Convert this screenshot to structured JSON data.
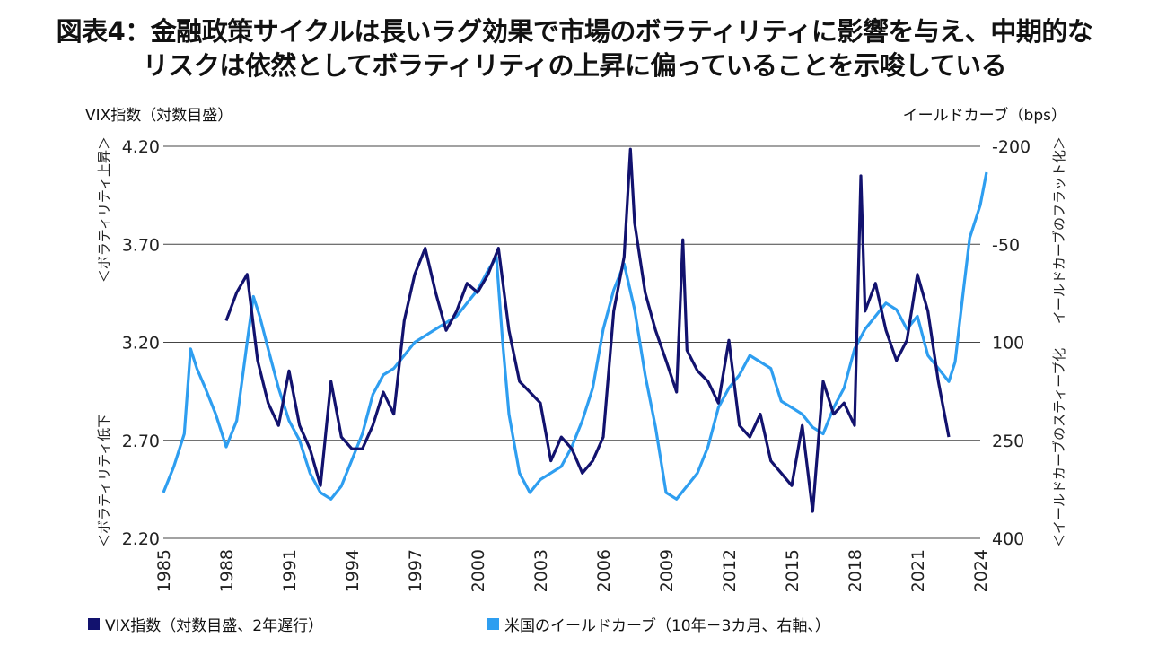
{
  "title_line1": "図表4：金融政策サイクルは長いラグ効果で市場のボラティリティに影響を与え、中期的な",
  "title_line2": "リスクは依然としてボラティリティの上昇に偏っていることを示唆している",
  "chart_data": {
    "type": "line",
    "left_axis_title": "VIX指数（対数目盛）",
    "right_axis_title": "イールドカーブ（bps）",
    "left_side_label_top": "＜ボラティリティ上昇＞",
    "left_side_label_bottom": "＜ボラティリティ低下",
    "right_side_label_top": "イールドカーブのフラット化＞",
    "right_side_label_bottom": "＜イールドカーブのスティープ化",
    "left_ticks": [
      "4.20",
      "3.70",
      "3.20",
      "2.70",
      "2.20"
    ],
    "left_ylim": [
      2.2,
      4.2
    ],
    "right_ticks": [
      "-200",
      "-50",
      "100",
      "250",
      "400"
    ],
    "right_ylim": [
      -200,
      400
    ],
    "right_axis_inverted": true,
    "x_ticks": [
      "1985",
      "1988",
      "1991",
      "1994",
      "1997",
      "2000",
      "2003",
      "2006",
      "2009",
      "2012",
      "2015",
      "2018",
      "2021",
      "2024"
    ],
    "xlim": [
      1985,
      2024
    ],
    "grid": "horizontal",
    "legend_position": "bottom",
    "series": [
      {
        "name": "VIX指数（対数目盛、2年遅行）",
        "color": "#12126e",
        "axis": "left",
        "x": [
          1988.0,
          1988.5,
          1989.0,
          1989.5,
          1990.0,
          1990.5,
          1991.0,
          1991.5,
          1992.0,
          1992.5,
          1993.0,
          1993.5,
          1994.0,
          1994.5,
          1995.0,
          1995.5,
          1996.0,
          1996.5,
          1997.0,
          1997.5,
          1998.0,
          1998.5,
          1999.0,
          1999.5,
          2000.0,
          2000.5,
          2001.0,
          2001.5,
          2002.0,
          2002.5,
          2003.0,
          2003.5,
          2004.0,
          2004.5,
          2005.0,
          2005.5,
          2006.0,
          2006.5,
          2007.0,
          2007.3,
          2007.5,
          2008.0,
          2008.5,
          2009.0,
          2009.5,
          2009.8,
          2010.0,
          2010.5,
          2011.0,
          2011.5,
          2012.0,
          2012.5,
          2013.0,
          2013.5,
          2014.0,
          2014.5,
          2015.0,
          2015.5,
          2016.0,
          2016.5,
          2017.0,
          2017.5,
          2018.0,
          2018.3,
          2018.5,
          2019.0,
          2019.5,
          2020.0,
          2020.5,
          2021.0,
          2021.5,
          2022.0,
          2022.5
        ],
        "values": [
          3.15,
          3.3,
          3.4,
          2.95,
          2.75,
          2.65,
          2.9,
          2.65,
          2.55,
          2.4,
          2.85,
          2.6,
          2.55,
          2.55,
          2.65,
          2.8,
          2.7,
          3.15,
          3.4,
          3.55,
          3.3,
          3.1,
          3.2,
          3.35,
          3.3,
          3.4,
          3.55,
          3.1,
          2.85,
          2.8,
          2.75,
          2.5,
          2.6,
          2.55,
          2.45,
          2.5,
          2.6,
          3.2,
          3.5,
          4.18,
          3.7,
          3.3,
          3.1,
          2.95,
          2.8,
          3.6,
          3.0,
          2.9,
          2.85,
          2.75,
          3.05,
          2.65,
          2.6,
          2.7,
          2.5,
          2.45,
          2.4,
          2.65,
          2.3,
          2.85,
          2.7,
          2.75,
          2.65,
          4.0,
          3.2,
          3.35,
          3.1,
          2.95,
          3.05,
          3.4,
          3.2,
          2.85,
          2.6
        ]
      },
      {
        "name": "米国のイールドカーブ（10年－3カ月、右軸、）",
        "color": "#2e9ef0",
        "axis": "right",
        "x": [
          1985.0,
          1985.5,
          1986.0,
          1986.3,
          1986.6,
          1987.0,
          1987.5,
          1988.0,
          1988.5,
          1989.0,
          1989.3,
          1989.6,
          1990.0,
          1990.5,
          1991.0,
          1991.5,
          1992.0,
          1992.5,
          1993.0,
          1993.5,
          1994.0,
          1994.5,
          1995.0,
          1995.5,
          1996.0,
          1996.5,
          1997.0,
          1997.5,
          1998.0,
          1998.5,
          1999.0,
          1999.5,
          2000.0,
          2000.5,
          2000.9,
          2001.2,
          2001.5,
          2002.0,
          2002.5,
          2003.0,
          2003.5,
          2004.0,
          2004.5,
          2005.0,
          2005.5,
          2006.0,
          2006.5,
          2007.0,
          2007.5,
          2008.0,
          2008.5,
          2009.0,
          2009.5,
          2010.0,
          2010.5,
          2011.0,
          2011.5,
          2012.0,
          2012.5,
          2013.0,
          2013.5,
          2014.0,
          2014.5,
          2015.0,
          2015.5,
          2016.0,
          2016.5,
          2017.0,
          2017.5,
          2018.0,
          2018.5,
          2019.0,
          2019.5,
          2020.0,
          2020.5,
          2021.0,
          2021.5,
          2022.0,
          2022.5,
          2022.8,
          2023.2,
          2023.5,
          2024.0,
          2024.3
        ],
        "values": [
          330,
          290,
          240,
          110,
          140,
          170,
          210,
          260,
          220,
          100,
          30,
          60,
          110,
          170,
          220,
          250,
          300,
          330,
          340,
          320,
          280,
          240,
          180,
          150,
          140,
          120,
          100,
          90,
          80,
          70,
          60,
          40,
          20,
          -10,
          -30,
          100,
          210,
          300,
          330,
          310,
          300,
          290,
          260,
          220,
          170,
          80,
          20,
          -20,
          50,
          150,
          230,
          330,
          340,
          320,
          300,
          260,
          200,
          170,
          150,
          120,
          130,
          140,
          190,
          200,
          210,
          230,
          240,
          200,
          170,
          110,
          80,
          60,
          40,
          50,
          80,
          60,
          120,
          140,
          160,
          130,
          20,
          -60,
          -110,
          -160
        ]
      }
    ]
  }
}
